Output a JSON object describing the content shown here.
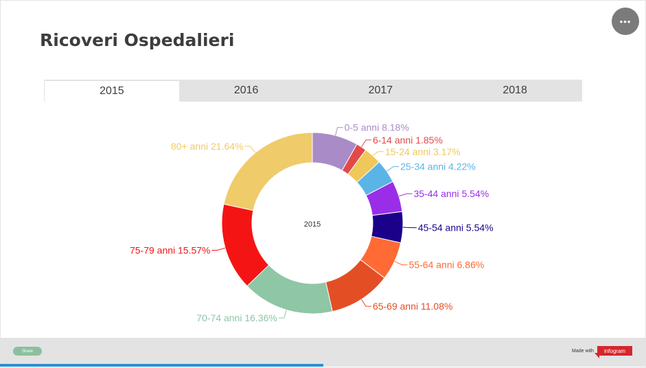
{
  "title": "Ricoveri Ospedalieri",
  "menu_button": {
    "icon": "more-dots-icon",
    "glyph": "•••"
  },
  "tabs": [
    {
      "label": "2015",
      "active": true
    },
    {
      "label": "2016",
      "active": false
    },
    {
      "label": "2017",
      "active": false
    },
    {
      "label": "2018",
      "active": false
    }
  ],
  "chart_data": {
    "type": "pie",
    "donut": true,
    "center_label": "2015",
    "start_angle_deg": 0,
    "unit": "%",
    "slices": [
      {
        "label": "0-5 anni",
        "value": 8.18,
        "display": "0-5 anni 8.18%",
        "color": "#a98cc7"
      },
      {
        "label": "6-14 anni",
        "value": 1.85,
        "display": "6-14 anni 1.85%",
        "color": "#e24a4a"
      },
      {
        "label": "15-24 anni",
        "value": 3.17,
        "display": "15-24 anni 3.17%",
        "color": "#f0c85a"
      },
      {
        "label": "25-34 anni",
        "value": 4.22,
        "display": "25-34 anni 4.22%",
        "color": "#5ab4e6"
      },
      {
        "label": "35-44 anni",
        "value": 5.54,
        "display": "35-44 anni 5.54%",
        "color": "#9a2ee8"
      },
      {
        "label": "45-54 anni",
        "value": 5.54,
        "display": "45-54 anni 5.54%",
        "color": "#1b008a"
      },
      {
        "label": "55-64 anni",
        "value": 6.86,
        "display": "55-64 anni 6.86%",
        "color": "#ff6a35"
      },
      {
        "label": "65-69 anni",
        "value": 11.08,
        "display": "65-69 anni 11.08%",
        "color": "#e34e25"
      },
      {
        "label": "70-74 anni",
        "value": 16.36,
        "display": "70-74 anni 16.36%",
        "color": "#8ec6a6"
      },
      {
        "label": "75-79 anni",
        "value": 15.57,
        "display": "75-79 anni 15.57%",
        "color": "#f51414"
      },
      {
        "label": "80+ anni",
        "value": 21.64,
        "display": "80+ anni 21.64%",
        "color": "#efcb6a"
      }
    ]
  },
  "footer": {
    "share_label": "Share",
    "made_with": "Made with",
    "brand": "infogram",
    "progress_fraction": 0.5
  },
  "colors": {
    "tab_bg": "#e3e3e3",
    "title": "#3d3d3d",
    "progress": "#2a8fd4",
    "brand": "#d5262c"
  }
}
